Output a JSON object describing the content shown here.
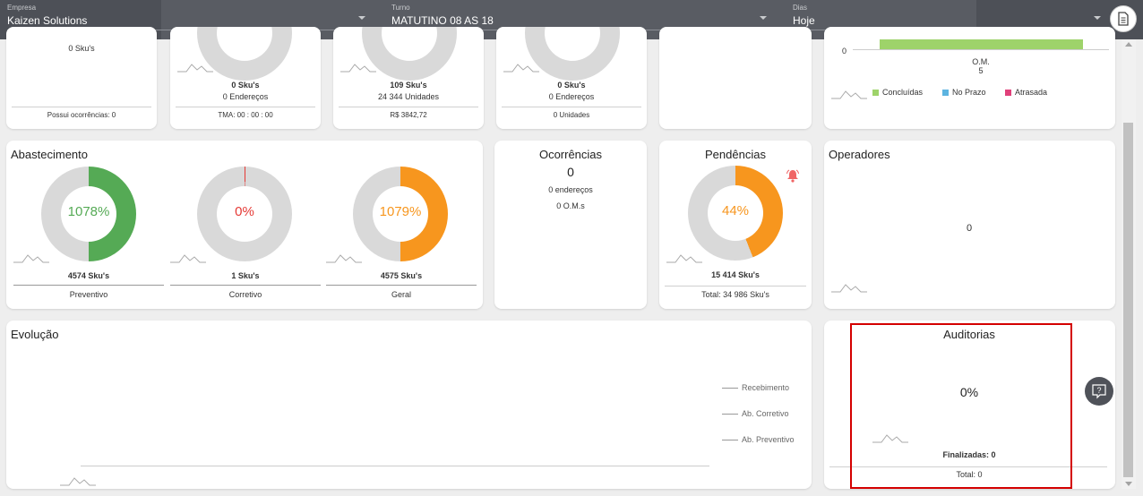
{
  "header": {
    "empresa": {
      "label": "Empresa",
      "value": "Kaizen Solutions"
    },
    "turno": {
      "label": "Turno",
      "value": "MATUTINO 08 AS 18"
    },
    "dias": {
      "label": "Dias",
      "value": "Hoje"
    }
  },
  "top_row": {
    "card1": {
      "skus": "0 Sku's",
      "footer": "Possui ocorrências:  0"
    },
    "card2": {
      "line1": "0 Sku's",
      "line2": "0 Endereços",
      "footer": "TMA:  00 : 00 : 00"
    },
    "card3": {
      "line1": "109 Sku's",
      "line2": "24 344 Unidades",
      "footer": "R$ 3842,72"
    },
    "card4": {
      "line1": "0 Sku's",
      "line2": "0 Endereços",
      "footer": "0 Unidades"
    },
    "om_card": {
      "y_tick": "0",
      "x_label": "O.M.",
      "x_value": "5",
      "legend": [
        {
          "label": "Concluídas",
          "color": "#9ed36a"
        },
        {
          "label": "No Prazo",
          "color": "#5db4e0"
        },
        {
          "label": "Atrasada",
          "color": "#e0407a"
        }
      ]
    }
  },
  "abastecimento": {
    "title": "Abastecimento",
    "donuts": [
      {
        "percent": 1078,
        "label": "1078%",
        "count": "4574 Sku's",
        "caption": "Preventivo",
        "color": "#55aa55"
      },
      {
        "percent": 0,
        "label": "0%",
        "count": "1 Sku's",
        "caption": "Corretivo",
        "color": "#e53935"
      },
      {
        "percent": 1079,
        "label": "1079%",
        "count": "4575 Sku's",
        "caption": "Geral",
        "color": "#f7961e"
      }
    ]
  },
  "ocorrencias": {
    "title": "Ocorrências",
    "count": "0",
    "enderecos": "0 endereços",
    "oms": "0 O.M.s"
  },
  "pendencias": {
    "title": "Pendências",
    "percent": 44,
    "label": "44%",
    "count": "15 414 Sku's",
    "total": "Total: 34 986 Sku's",
    "color": "#f7961e",
    "icon": "bell-icon"
  },
  "operadores": {
    "title": "Operadores",
    "value": "0"
  },
  "evolucao": {
    "title": "Evolução",
    "legend": [
      "Recebimento",
      "Ab. Corretivo",
      "Ab. Preventivo"
    ]
  },
  "auditorias": {
    "title": "Auditorias",
    "percent": "0%",
    "finalizadas": "Finalizadas: 0",
    "total": "Total: 0"
  },
  "colors": {
    "header": "#595c63",
    "track": "#d9d9d9",
    "highlight": "#d40000"
  }
}
